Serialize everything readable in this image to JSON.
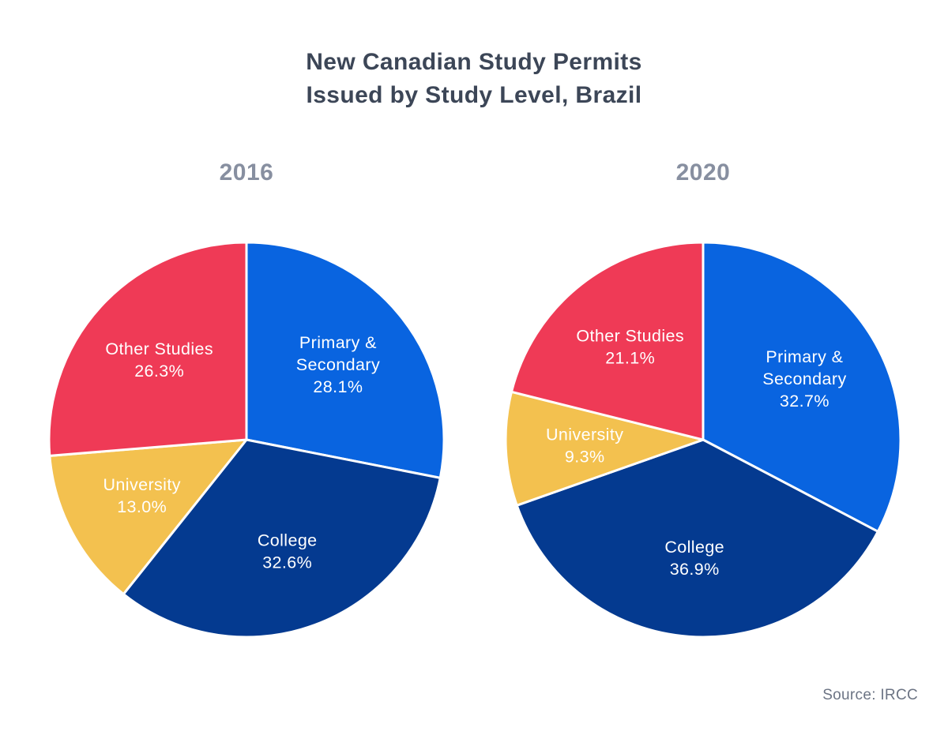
{
  "title": {
    "line1": "New Canadian Study Permits",
    "line2": "Issued by Study Level, Brazil"
  },
  "source": "Source: IRCC",
  "colors": {
    "primary_secondary": "#0964E0",
    "college": "#043A90",
    "university": "#F3C14F",
    "other_studies": "#EF3A56",
    "slice_divider": "#FFFFFF",
    "label_text": "#FFFFFF",
    "title_text": "#3C4657",
    "year_text": "#878FA0",
    "source_text": "#6C7484"
  },
  "chart_data": [
    {
      "type": "pie",
      "title": "2016",
      "start_angle_deg": 0,
      "direction": "clockwise",
      "slices": [
        {
          "label": "Primary & Secondary",
          "label_lines": [
            "Primary &",
            "Secondary"
          ],
          "value_pct": 28.1,
          "pct_text": "28.1%",
          "color_key": "primary_secondary"
        },
        {
          "label": "College",
          "label_lines": [
            "College"
          ],
          "value_pct": 32.6,
          "pct_text": "32.6%",
          "color_key": "college"
        },
        {
          "label": "University",
          "label_lines": [
            "University"
          ],
          "value_pct": 13.0,
          "pct_text": "13.0%",
          "color_key": "university"
        },
        {
          "label": "Other Studies",
          "label_lines": [
            "Other Studies"
          ],
          "value_pct": 26.3,
          "pct_text": "26.3%",
          "color_key": "other_studies"
        }
      ]
    },
    {
      "type": "pie",
      "title": "2020",
      "start_angle_deg": 0,
      "direction": "clockwise",
      "slices": [
        {
          "label": "Primary & Secondary",
          "label_lines": [
            "Primary &",
            "Secondary"
          ],
          "value_pct": 32.7,
          "pct_text": "32.7%",
          "color_key": "primary_secondary"
        },
        {
          "label": "College",
          "label_lines": [
            "College"
          ],
          "value_pct": 36.9,
          "pct_text": "36.9%",
          "color_key": "college"
        },
        {
          "label": "University",
          "label_lines": [
            "University"
          ],
          "value_pct": 9.3,
          "pct_text": "9.3%",
          "color_key": "university"
        },
        {
          "label": "Other Studies",
          "label_lines": [
            "Other Studies"
          ],
          "value_pct": 21.1,
          "pct_text": "21.1%",
          "color_key": "other_studies"
        }
      ]
    }
  ]
}
